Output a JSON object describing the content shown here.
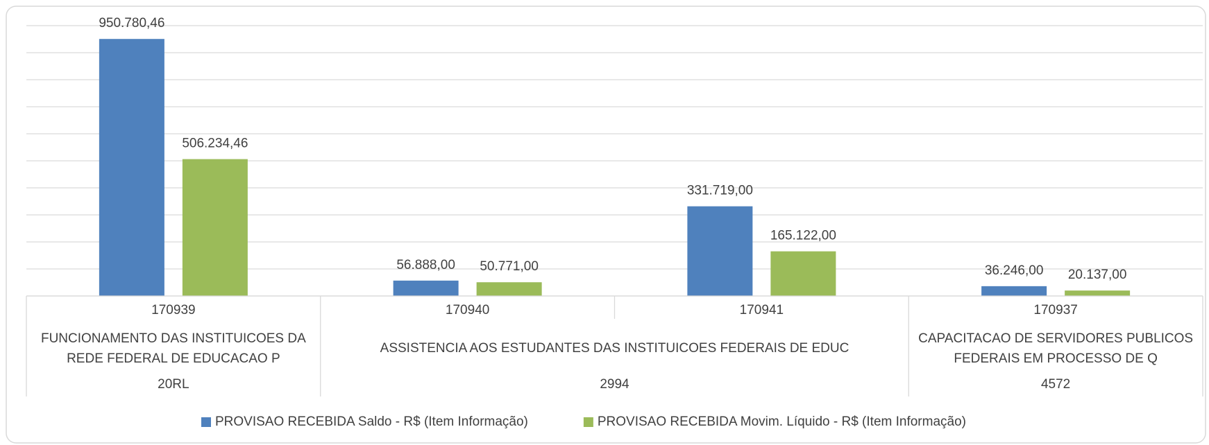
{
  "chart_data": {
    "type": "bar",
    "categories": [
      [
        "170939",
        "FUNCIONAMENTO DAS INSTITUICOES DA REDE FEDERAL DE EDUCACAO P",
        "20RL"
      ],
      [
        "170940",
        "ASSISTENCIA AOS ESTUDANTES DAS INSTITUICOES FEDERAIS DE EDUC",
        "2994"
      ],
      [
        "170941",
        null,
        null
      ],
      [
        "170937",
        "CAPACITACAO DE SERVIDORES PUBLICOS FEDERAIS EM PROCESSO DE Q",
        "4572"
      ]
    ],
    "series": [
      {
        "name": "PROVISAO RECEBIDA Saldo - R$ (Item Informação)",
        "color": "#4f81bd",
        "values": [
          950780.46,
          56888,
          331719,
          36246
        ],
        "value_labels": [
          "950.780,46",
          "56.888,00",
          "331.719,00",
          "36.246,00"
        ]
      },
      {
        "name": "PROVISAO RECEBIDA Movim. Líquido - R$ (Item Informação)",
        "color": "#9bbb59",
        "values": [
          506234.46,
          50771,
          165122,
          20137
        ],
        "value_labels": [
          "506.234,46",
          "50.771,00",
          "165.122,00",
          "20.137,00"
        ]
      }
    ],
    "ylim": [
      0,
      1000000
    ],
    "yticks": [
      0,
      100000,
      200000,
      300000,
      400000,
      500000,
      600000,
      700000,
      800000,
      900000,
      1000000
    ],
    "grid": true,
    "legend": "bottom"
  }
}
